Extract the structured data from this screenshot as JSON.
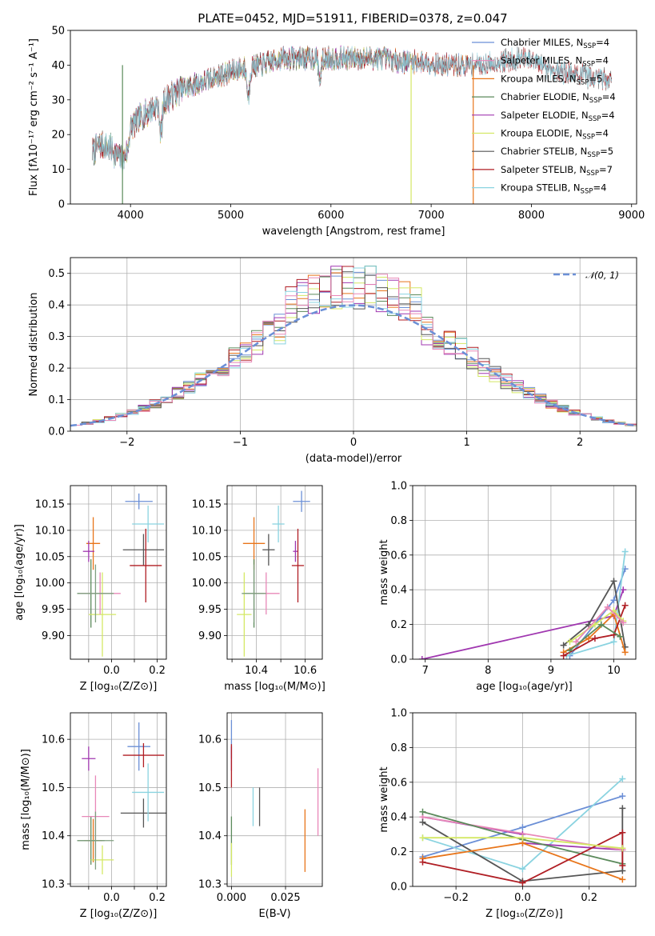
{
  "figure": {
    "title": "PLATE=0452, MJD=51911, FIBERID=0378, z=0.047"
  },
  "colors": {
    "palette": [
      "#6b8fd6",
      "#e8751a",
      "#5b8a5b",
      "#a037b0",
      "#d4e865",
      "#555555",
      "#b01e24",
      "#8ad3e0",
      "#e888b8",
      "#7f9f7f"
    ]
  },
  "chart_data": [
    {
      "id": "spectrum",
      "type": "line",
      "title": "PLATE=0452, MJD=51911, FIBERID=0378, z=0.047",
      "xlabel": "wavelength [Angstrom, rest frame]",
      "ylabel": "Flux [fλ10⁻¹⁷ erg cm⁻² s⁻¹ A⁻¹]",
      "xlim": [
        3400,
        9050
      ],
      "ylim": [
        0,
        50
      ],
      "xticks": [
        4000,
        5000,
        6000,
        7000,
        8000,
        9000
      ],
      "yticks": [
        0,
        10,
        20,
        30,
        40,
        50
      ],
      "grid": false,
      "legend_position": "upper-right",
      "continuum_knots": {
        "x": [
          3620,
          3700,
          3800,
          3900,
          3950,
          4000,
          4100,
          4300,
          4500,
          4700,
          4900,
          5100,
          5300,
          5500,
          5700,
          5900,
          6100,
          6300,
          6500,
          6700,
          6900,
          7100,
          7300,
          7500,
          7700,
          7900,
          8100,
          8300,
          8500,
          8800
        ],
        "y": [
          15,
          17,
          16,
          13,
          17,
          22,
          25,
          29,
          33,
          35,
          37,
          39,
          40,
          42,
          42,
          42,
          42,
          42,
          42,
          41,
          41,
          40,
          40,
          40,
          41,
          42,
          40,
          38,
          37,
          36
        ]
      },
      "features": [
        {
          "x": 3933,
          "depth": 0.2
        },
        {
          "x": 3968,
          "depth": 0.2
        },
        {
          "x": 4304,
          "depth": 0.3
        },
        {
          "x": 5175,
          "depth": 0.22
        },
        {
          "x": 5890,
          "depth": 0.15
        }
      ],
      "series": [
        {
          "name": "Chabrier MILES, N",
          "sub": "SSP",
          "suffix": "=4",
          "color": "#6b8fd6",
          "xmax": 7400
        },
        {
          "name": "Salpeter MILES, N",
          "sub": "SSP",
          "suffix": "=4",
          "color": "#e888b8",
          "xmax": 7400
        },
        {
          "name": "Kroupa MILES, N",
          "sub": "SSP",
          "suffix": "=5",
          "color": "#e8751a",
          "xmax": 7400
        },
        {
          "name": "Chabrier ELODIE, N",
          "sub": "SSP",
          "suffix": "=4",
          "color": "#5b8a5b",
          "xmax": 6800
        },
        {
          "name": "Salpeter ELODIE, N",
          "sub": "SSP",
          "suffix": "=4",
          "color": "#a037b0",
          "xmax": 6800
        },
        {
          "name": "Kroupa ELODIE, N",
          "sub": "SSP",
          "suffix": "=4",
          "color": "#d4e865",
          "xmax": 6800
        },
        {
          "name": "Chabrier STELIB, N",
          "sub": "SSP",
          "suffix": "=5",
          "color": "#555555",
          "xmax": 8800
        },
        {
          "name": "Salpeter STELIB, N",
          "sub": "SSP",
          "suffix": "=7",
          "color": "#b01e24",
          "xmax": 8800
        },
        {
          "name": "Kroupa STELIB, N",
          "sub": "SSP",
          "suffix": "=4",
          "color": "#8ad3e0",
          "xmax": 8800
        }
      ],
      "drops": [
        {
          "x": 3920,
          "color": "#5b8a5b"
        },
        {
          "x": 6800,
          "color": "#d4e865"
        },
        {
          "x": 7420,
          "color": "#e8751a"
        }
      ]
    },
    {
      "id": "residuals",
      "type": "histogram",
      "xlabel": "(data-model)/error",
      "ylabel": "Normed distribution",
      "xlim": [
        -2.5,
        2.5
      ],
      "ylim": [
        0,
        0.55
      ],
      "xticks": [
        -2,
        -1,
        0,
        1,
        2
      ],
      "yticks": [
        0.0,
        0.1,
        0.2,
        0.3,
        0.4,
        0.5
      ],
      "grid": true,
      "bin_width": 0.1,
      "reference": {
        "label": "𝒩(0, 1)",
        "color": "#6b8fd6",
        "style": "dashed"
      },
      "legend_position": "upper-right"
    },
    {
      "id": "age-vs-Z",
      "type": "errorbar",
      "xlabel": "Z [log₁₀(Z/Z⊙)]",
      "ylabel": "age  [log₁₀(age/yr)]",
      "xlim": [
        -0.18,
        0.24
      ],
      "ylim": [
        9.855,
        10.185
      ],
      "xticks": [
        -0.1,
        0.0,
        0.1,
        0.2
      ],
      "xticklabels": [
        "",
        "0.0",
        "",
        "0.2"
      ],
      "yticks": [
        9.9,
        9.95,
        10.0,
        10.05,
        10.1,
        10.15
      ],
      "grid": true,
      "points": [
        {
          "x": 0.12,
          "y": 10.155,
          "xerr": 0.06,
          "yerr": 0.015,
          "color": "#6b8fd6"
        },
        {
          "x": -0.08,
          "y": 10.075,
          "xerr": 0.03,
          "yerr": 0.05,
          "color": "#e8751a"
        },
        {
          "x": -0.09,
          "y": 9.98,
          "xerr": 0.06,
          "yerr": 0.065,
          "color": "#5b8a5b"
        },
        {
          "x": -0.1,
          "y": 10.06,
          "xerr": 0.025,
          "yerr": 0.02,
          "color": "#a037b0"
        },
        {
          "x": -0.04,
          "y": 9.94,
          "xerr": 0.06,
          "yerr": 0.08,
          "color": "#d4e865"
        },
        {
          "x": 0.14,
          "y": 10.063,
          "xerr": 0.09,
          "yerr": 0.03,
          "color": "#555555"
        },
        {
          "x": 0.15,
          "y": 10.033,
          "xerr": 0.07,
          "yerr": 0.07,
          "color": "#b01e24"
        },
        {
          "x": 0.16,
          "y": 10.112,
          "xerr": 0.07,
          "yerr": 0.035,
          "color": "#8ad3e0"
        },
        {
          "x": -0.05,
          "y": 9.98,
          "xerr": 0.09,
          "yerr": 0.04,
          "color": "#e888b8"
        },
        {
          "x": -0.07,
          "y": 9.98,
          "xerr": 0.08,
          "yerr": 0.055,
          "color": "#7f9f7f"
        }
      ]
    },
    {
      "id": "age-vs-mass",
      "type": "errorbar",
      "xlabel": "mass [log₁₀(M/M⊙)]",
      "ylabel": "",
      "xlim": [
        10.28,
        10.67
      ],
      "ylim": [
        9.855,
        10.185
      ],
      "xticks": [
        10.3,
        10.4,
        10.5,
        10.6
      ],
      "xticklabels": [
        "",
        "10.4",
        "",
        "10.6"
      ],
      "yticks": [
        9.9,
        9.95,
        10.0,
        10.05,
        10.1,
        10.15
      ],
      "grid": true,
      "points": [
        {
          "x": 10.585,
          "y": 10.155,
          "xerr": 0.035,
          "yerr": 0.02,
          "color": "#6b8fd6"
        },
        {
          "x": 10.39,
          "y": 10.075,
          "xerr": 0.045,
          "yerr": 0.05,
          "color": "#e8751a"
        },
        {
          "x": 10.39,
          "y": 9.98,
          "xerr": 0.04,
          "yerr": 0.065,
          "color": "#5b8a5b"
        },
        {
          "x": 10.56,
          "y": 10.06,
          "xerr": 0.01,
          "yerr": 0.02,
          "color": "#a037b0"
        },
        {
          "x": 10.35,
          "y": 9.94,
          "xerr": 0.03,
          "yerr": 0.08,
          "color": "#d4e865"
        },
        {
          "x": 10.45,
          "y": 10.063,
          "xerr": 0.025,
          "yerr": 0.03,
          "color": "#555555"
        },
        {
          "x": 10.57,
          "y": 10.033,
          "xerr": 0.025,
          "yerr": 0.07,
          "color": "#b01e24"
        },
        {
          "x": 10.49,
          "y": 10.112,
          "xerr": 0.025,
          "yerr": 0.035,
          "color": "#8ad3e0"
        },
        {
          "x": 10.44,
          "y": 9.98,
          "xerr": 0.055,
          "yerr": 0.04,
          "color": "#e888b8"
        },
        {
          "x": 10.39,
          "y": 9.98,
          "xerr": 0.05,
          "yerr": 0.055,
          "color": "#7f9f7f"
        }
      ]
    },
    {
      "id": "weight-vs-age",
      "type": "line",
      "xlabel": "age  [log₁₀(age/yr)]",
      "ylabel": "mass weight",
      "xlim": [
        6.8,
        10.35
      ],
      "ylim": [
        0,
        1
      ],
      "xticks": [
        7,
        8,
        9,
        10
      ],
      "yticks": [
        0.0,
        0.2,
        0.4,
        0.6,
        0.8,
        1.0
      ],
      "grid": true,
      "series": [
        {
          "color": "#a037b0",
          "x": [
            6.95,
            10.0,
            10.15
          ],
          "y": [
            0.0,
            0.25,
            0.4
          ]
        },
        {
          "color": "#6b8fd6",
          "x": [
            9.3,
            10.0,
            10.18
          ],
          "y": [
            0.02,
            0.34,
            0.52
          ]
        },
        {
          "color": "#8ad3e0",
          "x": [
            9.25,
            10.0,
            10.18
          ],
          "y": [
            0.02,
            0.1,
            0.62
          ]
        },
        {
          "color": "#555555",
          "x": [
            9.2,
            9.6,
            10.0,
            10.18
          ],
          "y": [
            0.08,
            0.2,
            0.45,
            0.07
          ]
        },
        {
          "color": "#e8751a",
          "x": [
            9.2,
            9.6,
            10.0,
            10.18
          ],
          "y": [
            0.04,
            0.12,
            0.26,
            0.04
          ]
        },
        {
          "color": "#b01e24",
          "x": [
            9.2,
            9.7,
            10.0,
            10.18
          ],
          "y": [
            0.02,
            0.12,
            0.14,
            0.31
          ]
        },
        {
          "color": "#d4e865",
          "x": [
            9.3,
            9.7,
            10.0,
            10.15
          ],
          "y": [
            0.1,
            0.2,
            0.28,
            0.22
          ]
        },
        {
          "color": "#5b8a5b",
          "x": [
            9.3,
            9.8,
            10.1
          ],
          "y": [
            0.05,
            0.2,
            0.13
          ]
        },
        {
          "color": "#e888b8",
          "x": [
            9.4,
            9.9,
            10.15
          ],
          "y": [
            0.1,
            0.3,
            0.21
          ]
        }
      ]
    },
    {
      "id": "mass-vs-Z",
      "type": "errorbar",
      "xlabel": "Z [log₁₀(Z/Z⊙)]",
      "ylabel": "mass [log₁₀(M/M⊙)]",
      "xlim": [
        -0.18,
        0.24
      ],
      "ylim": [
        10.295,
        10.655
      ],
      "xticks": [
        -0.1,
        0.0,
        0.1,
        0.2
      ],
      "xticklabels": [
        "",
        "0.0",
        "",
        "0.2"
      ],
      "yticks": [
        10.3,
        10.4,
        10.5,
        10.6
      ],
      "grid": true,
      "points": [
        {
          "x": 0.12,
          "y": 10.585,
          "xerr": 0.05,
          "yerr": 0.05,
          "color": "#6b8fd6"
        },
        {
          "x": -0.08,
          "y": 10.39,
          "xerr": 0.04,
          "yerr": 0.045,
          "color": "#e8751a"
        },
        {
          "x": -0.09,
          "y": 10.39,
          "xerr": 0.06,
          "yerr": 0.05,
          "color": "#5b8a5b"
        },
        {
          "x": -0.1,
          "y": 10.56,
          "xerr": 0.03,
          "yerr": 0.025,
          "color": "#a037b0"
        },
        {
          "x": -0.04,
          "y": 10.35,
          "xerr": 0.05,
          "yerr": 0.03,
          "color": "#d4e865"
        },
        {
          "x": 0.14,
          "y": 10.447,
          "xerr": 0.1,
          "yerr": 0.03,
          "color": "#555555"
        },
        {
          "x": 0.14,
          "y": 10.567,
          "xerr": 0.09,
          "yerr": 0.025,
          "color": "#b01e24"
        },
        {
          "x": 0.16,
          "y": 10.49,
          "xerr": 0.07,
          "yerr": 0.06,
          "color": "#8ad3e0"
        },
        {
          "x": -0.07,
          "y": 10.44,
          "xerr": 0.06,
          "yerr": 0.085,
          "color": "#e888b8"
        },
        {
          "x": -0.07,
          "y": 10.39,
          "xerr": 0.08,
          "yerr": 0.06,
          "color": "#7f9f7f"
        }
      ]
    },
    {
      "id": "mass-vs-ebv",
      "type": "errorbar",
      "xlabel": "E(B-V)",
      "ylabel": "",
      "xlim": [
        -0.002,
        0.042
      ],
      "ylim": [
        10.295,
        10.655
      ],
      "xticks": [
        0.0,
        0.025
      ],
      "xticklabels": [
        "0.000",
        "0.025"
      ],
      "yticks": [
        10.3,
        10.4,
        10.5,
        10.6
      ],
      "grid": true,
      "points": [
        {
          "x": 0.0,
          "y": 10.6,
          "xerr": 0,
          "yerr": 0.04,
          "color": "#6b8fd6"
        },
        {
          "x": 0.034,
          "y": 10.39,
          "xerr": 0,
          "yerr": 0.065,
          "color": "#e8751a"
        },
        {
          "x": 0.0,
          "y": 10.39,
          "xerr": 0,
          "yerr": 0.05,
          "color": "#5b8a5b"
        },
        {
          "x": 0.0,
          "y": 10.56,
          "xerr": 0,
          "yerr": 0.025,
          "color": "#a037b0"
        },
        {
          "x": 0.0,
          "y": 10.35,
          "xerr": 0,
          "yerr": 0.035,
          "color": "#d4e865"
        },
        {
          "x": 0.013,
          "y": 10.46,
          "xerr": 0,
          "yerr": 0.04,
          "color": "#555555"
        },
        {
          "x": 0.0,
          "y": 10.545,
          "xerr": 0,
          "yerr": 0.045,
          "color": "#b01e24"
        },
        {
          "x": 0.01,
          "y": 10.46,
          "xerr": 0,
          "yerr": 0.04,
          "color": "#8ad3e0"
        },
        {
          "x": 0.04,
          "y": 10.47,
          "xerr": 0,
          "yerr": 0.07,
          "color": "#e888b8"
        }
      ]
    },
    {
      "id": "weight-vs-Z",
      "type": "line",
      "xlabel": "Z [log₁₀(Z/Z⊙)]",
      "ylabel": "mass weight",
      "xlim": [
        -0.33,
        0.34
      ],
      "ylim": [
        0,
        1
      ],
      "xticks": [
        -0.2,
        0.0,
        0.2
      ],
      "yticks": [
        0.0,
        0.2,
        0.4,
        0.6,
        0.8,
        1.0
      ],
      "grid": true,
      "series": [
        {
          "color": "#6b8fd6",
          "x": [
            -0.3,
            0.0,
            0.3
          ],
          "y": [
            0.17,
            0.34,
            0.52
          ]
        },
        {
          "color": "#8ad3e0",
          "x": [
            -0.3,
            0.0,
            0.3
          ],
          "y": [
            0.28,
            0.1,
            0.62
          ]
        },
        {
          "color": "#a037b0",
          "x": [
            -0.3,
            0.0,
            0.0,
            0.3
          ],
          "y": [
            0.4,
            0.3,
            0.25,
            0.21
          ]
        },
        {
          "color": "#e888b8",
          "x": [
            -0.3,
            0.3
          ],
          "y": [
            0.4,
            0.21
          ]
        },
        {
          "color": "#555555",
          "x": [
            -0.3,
            0.0,
            0.3,
            0.3
          ],
          "y": [
            0.37,
            0.03,
            0.09,
            0.45
          ]
        },
        {
          "color": "#5b8a5b",
          "x": [
            -0.3,
            0.0,
            0.3
          ],
          "y": [
            0.43,
            0.27,
            0.13
          ]
        },
        {
          "color": "#e8751a",
          "x": [
            -0.3,
            0.0,
            0.3
          ],
          "y": [
            0.16,
            0.25,
            0.04
          ]
        },
        {
          "color": "#b01e24",
          "x": [
            -0.3,
            0.0,
            0.3,
            0.3
          ],
          "y": [
            0.14,
            0.02,
            0.31,
            0.12
          ]
        },
        {
          "color": "#d4e865",
          "x": [
            -0.3,
            0.0,
            0.3
          ],
          "y": [
            0.28,
            0.28,
            0.22
          ]
        }
      ]
    }
  ]
}
